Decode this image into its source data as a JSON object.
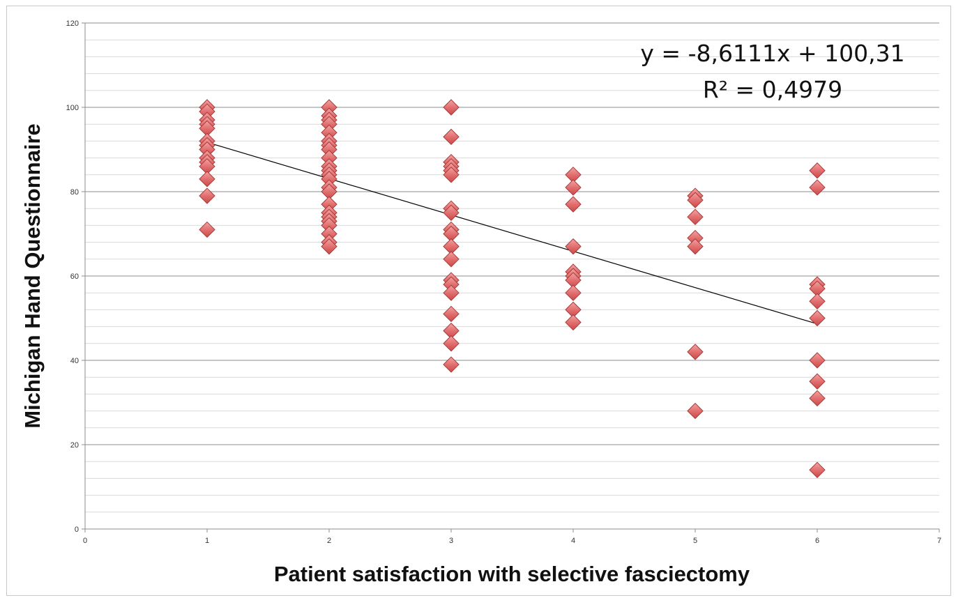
{
  "chart_data": {
    "type": "scatter",
    "title": "",
    "xlabel": "Patient satisfaction with selective fasciectomy",
    "ylabel": "Michigan Hand Questionnaire",
    "xlim": [
      0,
      7
    ],
    "ylim": [
      0,
      120
    ],
    "x_ticks": [
      0,
      1,
      2,
      3,
      4,
      5,
      6,
      7
    ],
    "y_ticks": [
      0,
      20,
      40,
      60,
      80,
      100,
      120
    ],
    "y_minor_step": 4,
    "grid": true,
    "legend": "none",
    "marker": "diamond",
    "marker_color": "#e06b6b",
    "marker_edge": "#a83a3a",
    "trendline": {
      "type": "linear",
      "slope": -8.6111,
      "intercept": 100.31,
      "x_range": [
        1,
        6
      ],
      "color": "#000000",
      "equation": "y = -8,6111x + 100,31",
      "r_squared": "R² = 0,4979"
    },
    "series": [
      {
        "points": [
          [
            1,
            100
          ],
          [
            1,
            99
          ],
          [
            1,
            97
          ],
          [
            1,
            96
          ],
          [
            1,
            95
          ],
          [
            1,
            92
          ],
          [
            1,
            91
          ],
          [
            1,
            90
          ],
          [
            1,
            88
          ],
          [
            1,
            87
          ],
          [
            1,
            86
          ],
          [
            1,
            83
          ],
          [
            1,
            79
          ],
          [
            1,
            71
          ],
          [
            2,
            100
          ],
          [
            2,
            98
          ],
          [
            2,
            97
          ],
          [
            2,
            96
          ],
          [
            2,
            94
          ],
          [
            2,
            92
          ],
          [
            2,
            91
          ],
          [
            2,
            90
          ],
          [
            2,
            88
          ],
          [
            2,
            86
          ],
          [
            2,
            85
          ],
          [
            2,
            84
          ],
          [
            2,
            83
          ],
          [
            2,
            81
          ],
          [
            2,
            80
          ],
          [
            2,
            77
          ],
          [
            2,
            75
          ],
          [
            2,
            74
          ],
          [
            2,
            73
          ],
          [
            2,
            72
          ],
          [
            2,
            70
          ],
          [
            2,
            68
          ],
          [
            2,
            67
          ],
          [
            3,
            100
          ],
          [
            3,
            93
          ],
          [
            3,
            87
          ],
          [
            3,
            86
          ],
          [
            3,
            85
          ],
          [
            3,
            84
          ],
          [
            3,
            76
          ],
          [
            3,
            75
          ],
          [
            3,
            71
          ],
          [
            3,
            70
          ],
          [
            3,
            67
          ],
          [
            3,
            64
          ],
          [
            3,
            59
          ],
          [
            3,
            58
          ],
          [
            3,
            56
          ],
          [
            3,
            51
          ],
          [
            3,
            47
          ],
          [
            3,
            44
          ],
          [
            3,
            39
          ],
          [
            4,
            84
          ],
          [
            4,
            81
          ],
          [
            4,
            77
          ],
          [
            4,
            67
          ],
          [
            4,
            61
          ],
          [
            4,
            60
          ],
          [
            4,
            59
          ],
          [
            4,
            56
          ],
          [
            4,
            52
          ],
          [
            4,
            49
          ],
          [
            5,
            79
          ],
          [
            5,
            78
          ],
          [
            5,
            74
          ],
          [
            5,
            69
          ],
          [
            5,
            67
          ],
          [
            5,
            42
          ],
          [
            5,
            28
          ],
          [
            6,
            85
          ],
          [
            6,
            81
          ],
          [
            6,
            58
          ],
          [
            6,
            57
          ],
          [
            6,
            54
          ],
          [
            6,
            50
          ],
          [
            6,
            40
          ],
          [
            6,
            35
          ],
          [
            6,
            31
          ],
          [
            6,
            14
          ]
        ]
      }
    ]
  }
}
